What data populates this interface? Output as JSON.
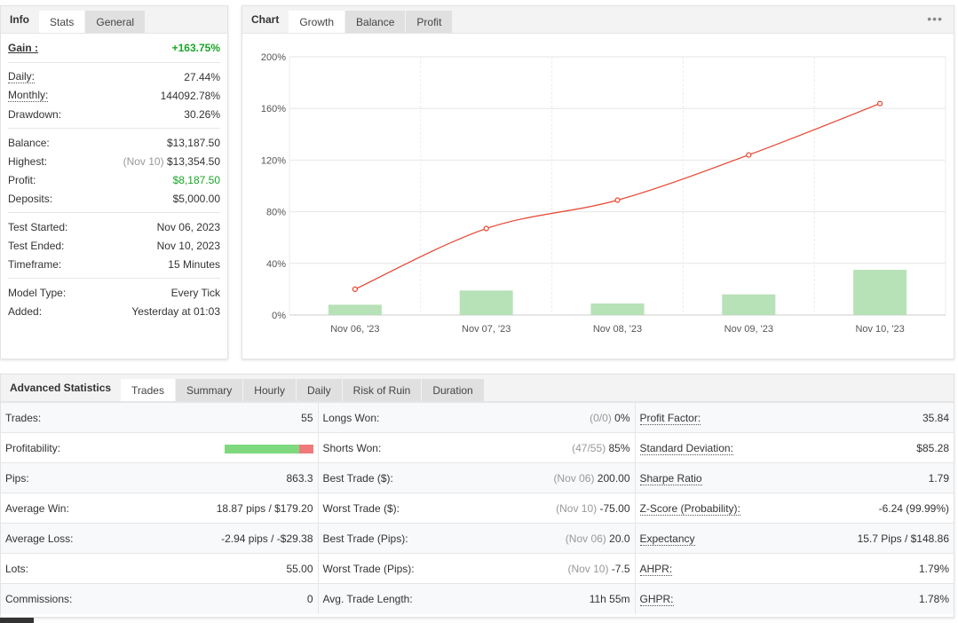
{
  "info": {
    "tabs": [
      "Info",
      "Stats",
      "General"
    ],
    "gain_label": "Gain :",
    "gain_value": "+163.75%",
    "groups": [
      [
        {
          "label": "Daily:",
          "value": "27.44%",
          "dotted": true
        },
        {
          "label": "Monthly:",
          "value": "144092.78%",
          "dotted": true
        },
        {
          "label": "Drawdown:",
          "value": "30.26%",
          "dotted": false
        }
      ],
      [
        {
          "label": "Balance:",
          "value": "$13,187.50",
          "dotted": false
        },
        {
          "label": "Highest:",
          "prefix": "(Nov 10)",
          "value": "$13,354.50",
          "dotted": false
        },
        {
          "label": "Profit:",
          "value": "$8,187.50",
          "dotted": false,
          "green": true
        },
        {
          "label": "Deposits:",
          "value": "$5,000.00",
          "dotted": false
        }
      ],
      [
        {
          "label": "Test Started:",
          "value": "Nov 06, 2023",
          "dotted": false
        },
        {
          "label": "Test Ended:",
          "value": "Nov 10, 2023",
          "dotted": false
        },
        {
          "label": "Timeframe:",
          "value": "15 Minutes",
          "dotted": false
        }
      ],
      [
        {
          "label": "Model Type:",
          "value": "Every Tick",
          "dotted": false
        },
        {
          "label": "Added:",
          "value": "Yesterday at 01:03",
          "dotted": false
        }
      ]
    ]
  },
  "chart": {
    "tabs": [
      "Chart",
      "Growth",
      "Balance",
      "Profit"
    ],
    "more_icon": "•••"
  },
  "chart_data": {
    "type": "line",
    "categories": [
      "Nov 06, '23",
      "Nov 07, '23",
      "Nov 08, '23",
      "Nov 09, '23",
      "Nov 10, '23"
    ],
    "y_ticks": [
      "200%",
      "160%",
      "120%",
      "80%",
      "40%",
      "0%"
    ],
    "ylim": [
      0,
      200
    ],
    "series": [
      {
        "type": "line",
        "values": [
          20,
          67,
          89,
          124,
          163.75
        ],
        "color": "#e8432e"
      },
      {
        "type": "bar",
        "values": [
          8,
          19,
          9,
          16,
          35
        ],
        "color": "#b7e1b7"
      }
    ],
    "grid": true
  },
  "advanced": {
    "tabs": [
      "Advanced Statistics",
      "Trades",
      "Summary",
      "Hourly",
      "Daily",
      "Risk of Ruin",
      "Duration"
    ],
    "profitability_bar": {
      "green_fraction": 0.84,
      "red_fraction": 0.16
    },
    "rows": [
      {
        "c1l": "Trades:",
        "c1v": "55",
        "c2l": "Longs Won:",
        "c2m": "(0/0)",
        "c2v": "0%",
        "c3l": "Profit Factor:",
        "c3v": "35.84"
      },
      {
        "c1l": "Profitability:",
        "c1v": "",
        "c2l": "Shorts Won:",
        "c2m": "(47/55)",
        "c2v": "85%",
        "c3l": "Standard Deviation:",
        "c3v": "$85.28"
      },
      {
        "c1l": "Pips:",
        "c1v": "863.3",
        "c2l": "Best Trade ($):",
        "c2m": "(Nov 06)",
        "c2v": "200.00",
        "c3l": "Sharpe Ratio",
        "c3v": "1.79"
      },
      {
        "c1l": "Average Win:",
        "c1v": "18.87 pips / $179.20",
        "c2l": "Worst Trade ($):",
        "c2m": "(Nov 10)",
        "c2v": "-75.00",
        "c3l": "Z-Score (Probability):",
        "c3v": "-6.24 (99.99%)"
      },
      {
        "c1l": "Average Loss:",
        "c1v": "-2.94 pips / -$29.38",
        "c2l": "Best Trade (Pips):",
        "c2m": "(Nov 06)",
        "c2v": "20.0",
        "c3l": "Expectancy",
        "c3v": "15.7 Pips / $148.86"
      },
      {
        "c1l": "Lots:",
        "c1v": "55.00",
        "c2l": "Worst Trade (Pips):",
        "c2m": "(Nov 10)",
        "c2v": "-7.5",
        "c3l": "AHPR:",
        "c3v": "1.79%"
      },
      {
        "c1l": "Commissions:",
        "c1v": "0",
        "c2l": "Avg. Trade Length:",
        "c2m": "",
        "c2v": "11h 55m",
        "c3l": "GHPR:",
        "c3v": "1.78%"
      }
    ]
  }
}
